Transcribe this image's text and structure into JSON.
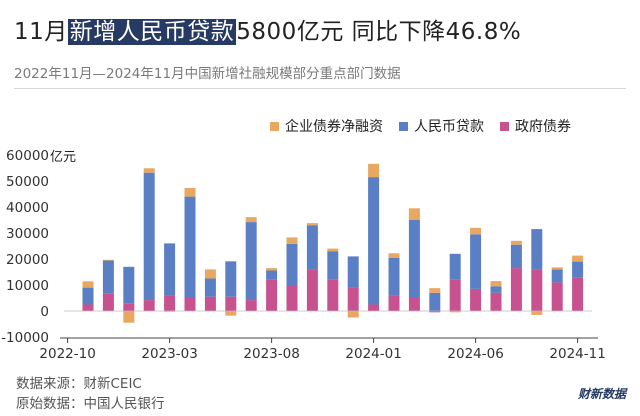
{
  "title": {
    "prefix": "11月",
    "highlight": "新增人民币贷款",
    "suffix": "5800亿元 同比下降46.8%"
  },
  "subtitle": "2022年11月—2024年11月中国新增社融规模部分重点部门数据",
  "unit_label": "亿元",
  "footer": {
    "source": "数据来源：财新CEIC",
    "original": "原始数据：中国人民银行"
  },
  "watermark": "财新数据",
  "colors": {
    "corporate_bonds": "#e8a862",
    "rmb_loans": "#5b7fc4",
    "gov_bonds": "#c8528f"
  },
  "chart_data": {
    "type": "bar",
    "stacked": true,
    "categories": [
      "2022-11",
      "2022-12",
      "2023-01",
      "2023-02",
      "2023-03",
      "2023-04",
      "2023-05",
      "2023-06",
      "2023-07",
      "2023-08",
      "2023-09",
      "2023-10",
      "2023-11",
      "2023-12",
      "2024-01",
      "2024-02",
      "2024-03",
      "2024-04",
      "2024-05",
      "2024-06",
      "2024-07",
      "2024-08",
      "2024-09",
      "2024-10",
      "2024-11"
    ],
    "x_tick_labels": [
      "2022-10",
      "2023-03",
      "2023-08",
      "2024-01",
      "2024-06",
      "2024-11"
    ],
    "ylim": [
      -10000,
      60000
    ],
    "y_ticks": [
      -10000,
      0,
      10000,
      20000,
      30000,
      40000,
      50000,
      60000
    ],
    "grid": false,
    "legend_position": "top-right",
    "series": [
      {
        "name": "政府债券",
        "values": [
          2500,
          6800,
          3000,
          4200,
          6000,
          5000,
          5500,
          5500,
          4200,
          12000,
          10000,
          16000,
          12000,
          9000,
          2500,
          6000,
          5000,
          -500,
          12000,
          8500,
          7000,
          16500,
          16000,
          11000,
          13000
        ]
      },
      {
        "name": "人民币贷款",
        "values": [
          6500,
          12600,
          14000,
          49000,
          20000,
          39000,
          7000,
          13600,
          30000,
          3600,
          15800,
          17000,
          11000,
          12000,
          49000,
          14500,
          30000,
          7000,
          10000,
          21000,
          2500,
          9000,
          15500,
          5000,
          6000
        ]
      },
      {
        "name": "企业债券净融资",
        "values": [
          2400,
          300,
          -4500,
          1700,
          -300,
          3300,
          3500,
          -1800,
          1900,
          900,
          2500,
          800,
          1000,
          -2500,
          5100,
          1700,
          4500,
          1800,
          -500,
          2500,
          2000,
          1500,
          -1500,
          800,
          2300
        ]
      }
    ]
  }
}
